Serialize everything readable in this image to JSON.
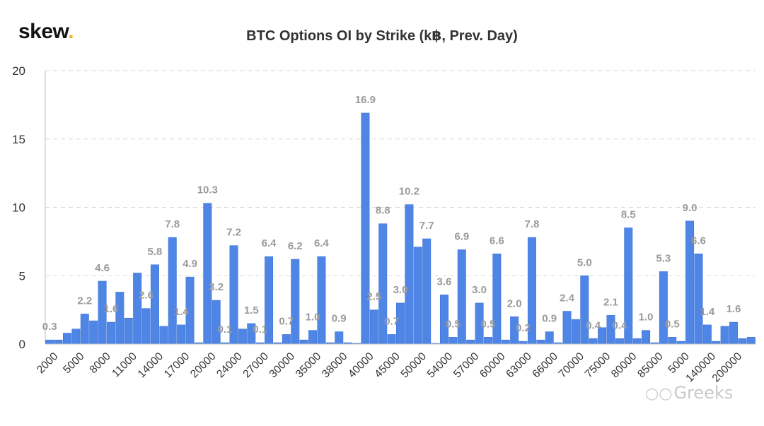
{
  "header": {
    "logo_text": "skew",
    "logo_dot": ".",
    "title": "BTC Options OI by Strike (k฿, Prev. Day)"
  },
  "watermark": {
    "text": "Greeks",
    "icon": "wechat-icon"
  },
  "colors": {
    "bar": "#4f86e6",
    "bar_edge": "#3f74d6",
    "label": "#9a9a9a",
    "grid": "#d9d9d9"
  },
  "chart_data": {
    "type": "bar",
    "title": "BTC Options OI by Strike (k฿, Prev. Day)",
    "xlabel": "",
    "ylabel": "",
    "ylim": [
      0,
      20
    ],
    "yticks": [
      0,
      5,
      10,
      15,
      20
    ],
    "grid": true,
    "xtick_labels": [
      "2000",
      "5000",
      "8000",
      "11000",
      "14000",
      "17000",
      "20000",
      "24000",
      "27000",
      "30000",
      "35000",
      "38000",
      "40000",
      "45000",
      "50000",
      "54000",
      "57000",
      "60000",
      "63000",
      "66000",
      "70000",
      "75000",
      "80000",
      "85000",
      "5000",
      "140000",
      "200000"
    ],
    "values": [
      0.3,
      0.3,
      0.8,
      1.1,
      2.2,
      1.7,
      4.6,
      1.6,
      3.8,
      1.9,
      5.2,
      2.6,
      5.8,
      1.3,
      7.8,
      1.4,
      4.9,
      0.1,
      10.3,
      3.2,
      0.1,
      7.2,
      1.1,
      1.5,
      0.1,
      6.4,
      0.1,
      0.7,
      6.2,
      0.3,
      1.0,
      6.4,
      0.1,
      0.9,
      0.1,
      0.05,
      16.9,
      2.5,
      8.8,
      0.7,
      3.0,
      10.2,
      7.1,
      7.7,
      0.05,
      3.6,
      0.5,
      6.9,
      0.3,
      3.0,
      0.5,
      6.6,
      0.3,
      2.0,
      0.2,
      7.8,
      0.3,
      0.9,
      0.1,
      2.4,
      1.8,
      5.0,
      0.4,
      1.2,
      2.1,
      0.4,
      8.5,
      0.4,
      1.0,
      0.1,
      5.3,
      0.5,
      0.2,
      9.0,
      6.6,
      1.4,
      0.2,
      1.3,
      1.6,
      0.4,
      0.5
    ],
    "data_labels": [
      {
        "index": 0,
        "text": "0.3"
      },
      {
        "index": 4,
        "text": "2.2"
      },
      {
        "index": 6,
        "text": "4.6"
      },
      {
        "index": 7,
        "text": "1.6"
      },
      {
        "index": 11,
        "text": "2.6"
      },
      {
        "index": 12,
        "text": "5.8"
      },
      {
        "index": 14,
        "text": "7.8"
      },
      {
        "index": 15,
        "text": "1.4"
      },
      {
        "index": 16,
        "text": "4.9"
      },
      {
        "index": 18,
        "text": "10.3"
      },
      {
        "index": 19,
        "text": "3.2"
      },
      {
        "index": 20,
        "text": "0.1"
      },
      {
        "index": 21,
        "text": "7.2"
      },
      {
        "index": 23,
        "text": "1.5"
      },
      {
        "index": 24,
        "text": "0.1"
      },
      {
        "index": 25,
        "text": "6.4"
      },
      {
        "index": 27,
        "text": "0.7"
      },
      {
        "index": 28,
        "text": "6.2"
      },
      {
        "index": 30,
        "text": "1.0"
      },
      {
        "index": 31,
        "text": "6.4"
      },
      {
        "index": 33,
        "text": "0.9"
      },
      {
        "index": 36,
        "text": "16.9"
      },
      {
        "index": 37,
        "text": "2.5"
      },
      {
        "index": 38,
        "text": "8.8"
      },
      {
        "index": 39,
        "text": "0.7"
      },
      {
        "index": 40,
        "text": "3.0"
      },
      {
        "index": 41,
        "text": "10.2"
      },
      {
        "index": 43,
        "text": "7.7"
      },
      {
        "index": 45,
        "text": "3.6"
      },
      {
        "index": 46,
        "text": "0.5"
      },
      {
        "index": 47,
        "text": "6.9"
      },
      {
        "index": 49,
        "text": "3.0"
      },
      {
        "index": 50,
        "text": "0.5"
      },
      {
        "index": 51,
        "text": "6.6"
      },
      {
        "index": 53,
        "text": "2.0"
      },
      {
        "index": 54,
        "text": "0.2"
      },
      {
        "index": 55,
        "text": "7.8"
      },
      {
        "index": 57,
        "text": "0.9"
      },
      {
        "index": 59,
        "text": "2.4"
      },
      {
        "index": 61,
        "text": "5.0"
      },
      {
        "index": 62,
        "text": "0.4"
      },
      {
        "index": 64,
        "text": "2.1"
      },
      {
        "index": 65,
        "text": "0.4"
      },
      {
        "index": 66,
        "text": "8.5"
      },
      {
        "index": 68,
        "text": "1.0"
      },
      {
        "index": 70,
        "text": "5.3"
      },
      {
        "index": 71,
        "text": "0.5"
      },
      {
        "index": 73,
        "text": "9.0"
      },
      {
        "index": 74,
        "text": "6.6"
      },
      {
        "index": 75,
        "text": "1.4"
      },
      {
        "index": 78,
        "text": "1.6"
      }
    ]
  }
}
